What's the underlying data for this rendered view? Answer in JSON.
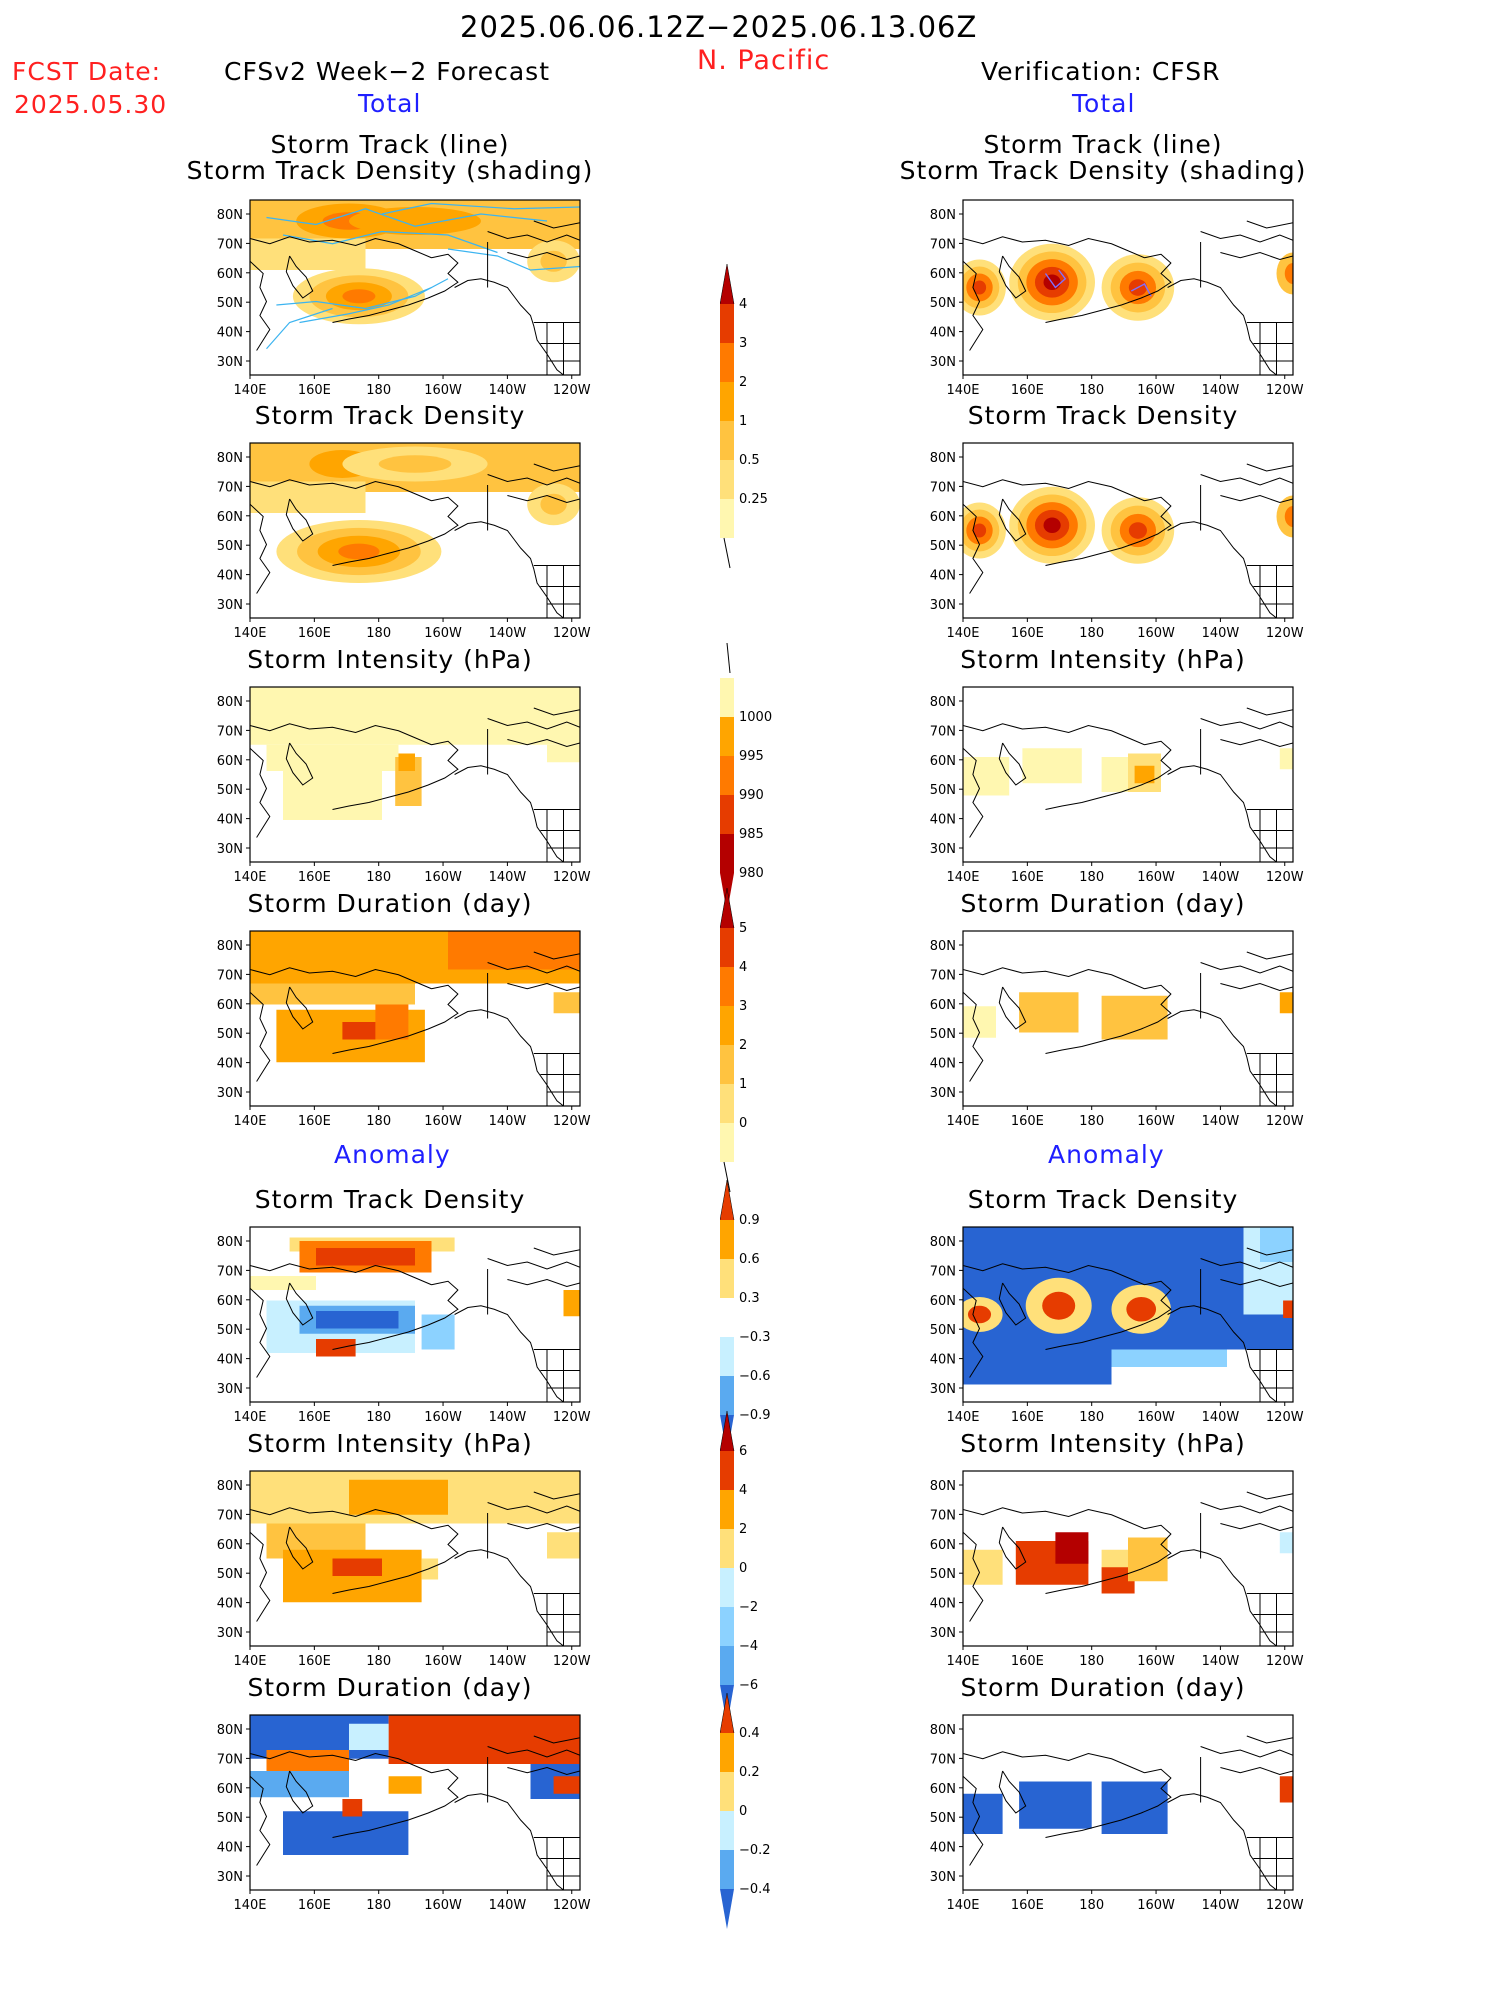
{
  "header": {
    "period": "2025.06.06.12Z−2025.06.13.06Z",
    "region": "N. Pacific",
    "fcst_label": "FCST Date:",
    "fcst_date": "2025.05.30",
    "left_title": "CFSv2 Week−2 Forecast",
    "right_title": "Verification: CFSR",
    "total_label": "Total",
    "anomaly_label": "Anomaly"
  },
  "axes": {
    "lon_ticks": [
      "140E",
      "160E",
      "180",
      "160W",
      "140W",
      "120W"
    ],
    "lat_ticks": [
      "80N",
      "70N",
      "60N",
      "50N",
      "40N",
      "30N"
    ]
  },
  "panels": {
    "total": [
      {
        "id": "track",
        "title_lines": [
          "Storm Track (line)",
          "Storm Track Density (shading)"
        ]
      },
      {
        "id": "density",
        "title_lines": [
          "Storm Track Density"
        ]
      },
      {
        "id": "intensity",
        "title_lines": [
          "Storm Intensity (hPa)"
        ]
      },
      {
        "id": "duration",
        "title_lines": [
          "Storm Duration (day)"
        ]
      }
    ],
    "anomaly": [
      {
        "id": "density_anom",
        "title_lines": [
          "Storm Track Density"
        ]
      },
      {
        "id": "intensity_anom",
        "title_lines": [
          "Storm Intensity (hPa)"
        ]
      },
      {
        "id": "duration_anom",
        "title_lines": [
          "Storm Duration (day)"
        ]
      }
    ]
  },
  "colors": {
    "c_low": "#fff7b0",
    "c1": "#ffe07a",
    "c2": "#ffc340",
    "c3": "#ffa500",
    "c4": "#ff7a00",
    "c5": "#e63c00",
    "c6": "#b40000",
    "b1": "#c8f0ff",
    "b2": "#8cd2ff",
    "b3": "#5aaaf0",
    "b4": "#2864d2",
    "track_line": "#3cb4f0"
  },
  "chart_data": [
    {
      "type": "heatmap",
      "name": "density_colorbar",
      "levels": [
        "0.25",
        "0.5",
        "1",
        "2",
        "3",
        "4"
      ]
    },
    {
      "type": "heatmap",
      "name": "intensity_colorbar",
      "levels": [
        "1000",
        "995",
        "990",
        "985",
        "980"
      ]
    },
    {
      "type": "heatmap",
      "name": "duration_colorbar",
      "levels": [
        "0",
        "1",
        "2",
        "3",
        "4",
        "5"
      ]
    },
    {
      "type": "heatmap",
      "name": "density_anom_colorbar",
      "levels": [
        "0.9",
        "0.6",
        "0.3",
        "−0.3",
        "−0.6",
        "−0.9"
      ]
    },
    {
      "type": "heatmap",
      "name": "intensity_anom_colorbar",
      "levels": [
        "6",
        "4",
        "2",
        "0",
        "−2",
        "−4",
        "−6"
      ]
    },
    {
      "type": "heatmap",
      "name": "duration_anom_colorbar",
      "levels": [
        "0.4",
        "0.2",
        "0",
        "−0.2",
        "−0.4"
      ]
    }
  ]
}
